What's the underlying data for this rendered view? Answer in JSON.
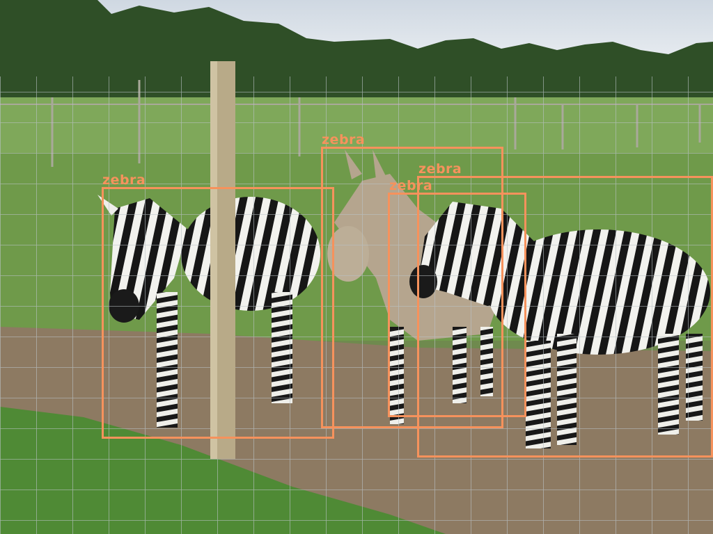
{
  "colors": {
    "box": "#f6925c",
    "sky": "#dfe6ee",
    "trees": "#2f4f27",
    "grass": "#6f9a4a",
    "dirt": "#8d7a62",
    "foreground_grass": "#4f8a35",
    "fence_post": "#b8aa88",
    "wire": "#b9c2c6"
  },
  "detections": [
    {
      "label": "zebra"
    },
    {
      "label": "zebra"
    },
    {
      "label": "zebra"
    },
    {
      "label": "zebra"
    }
  ]
}
